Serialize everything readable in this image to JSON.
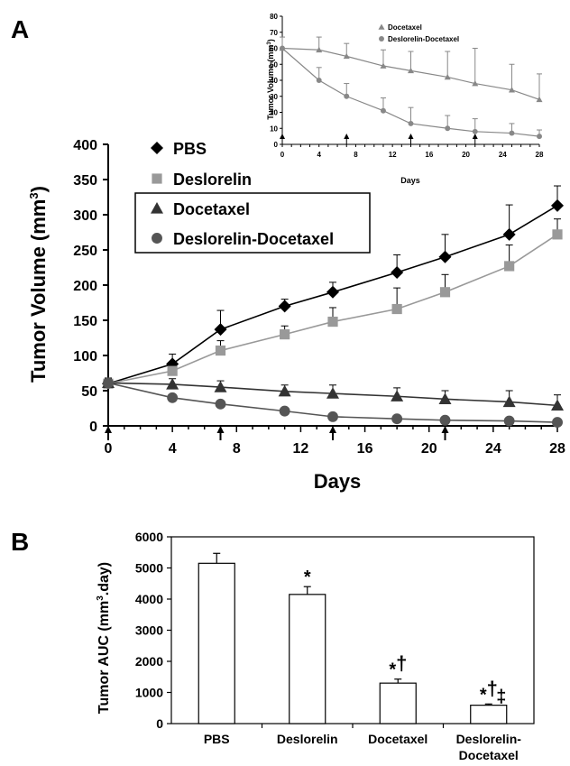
{
  "chart_data": [
    {
      "type": "line",
      "panel": "A",
      "xlabel": "Days",
      "ylabel": "Tumor Volume (mm³)",
      "ylabel_main": "Tumor Volume (mm",
      "ylabel_sup": "3",
      "ylabel_close": ")",
      "xlim": [
        0,
        28
      ],
      "ylim": [
        0,
        400
      ],
      "xticks": [
        0,
        4,
        8,
        12,
        16,
        20,
        24,
        28
      ],
      "yticks": [
        0,
        50,
        100,
        150,
        200,
        250,
        300,
        350,
        400
      ],
      "dosing_days": [
        0,
        7,
        14,
        21
      ],
      "legend": [
        "PBS",
        "Deslorelin",
        "Docetaxel",
        "Deslorelin-Docetaxel"
      ],
      "series": [
        {
          "name": "PBS",
          "marker": "diamond",
          "color": "#000000",
          "x": [
            0,
            4,
            7,
            11,
            14,
            18,
            21,
            25,
            28
          ],
          "y": [
            60,
            88,
            137,
            170,
            190,
            218,
            240,
            272,
            313
          ],
          "err": [
            7,
            14,
            27,
            10,
            14,
            25,
            32,
            42,
            28
          ]
        },
        {
          "name": "Deslorelin",
          "marker": "square",
          "color": "#999999",
          "x": [
            0,
            4,
            7,
            11,
            14,
            18,
            21,
            25,
            28
          ],
          "y": [
            60,
            78,
            107,
            130,
            148,
            166,
            190,
            227,
            272
          ],
          "err": [
            6,
            8,
            14,
            12,
            20,
            30,
            25,
            30,
            22
          ]
        },
        {
          "name": "Docetaxel",
          "marker": "triangle",
          "color": "#333333",
          "x": [
            0,
            4,
            7,
            11,
            14,
            18,
            21,
            25,
            28
          ],
          "y": [
            61,
            59,
            55,
            49,
            46,
            42,
            38,
            34,
            29
          ],
          "err": [
            7,
            8,
            9,
            9,
            12,
            12,
            12,
            16,
            15
          ]
        },
        {
          "name": "Deslorelin-Docetaxel",
          "marker": "circle",
          "color": "#555555",
          "x": [
            0,
            4,
            7,
            11,
            14,
            18,
            21,
            25,
            28
          ],
          "y": [
            61,
            40,
            31,
            21,
            13,
            10,
            8,
            7,
            5
          ]
        }
      ]
    },
    {
      "type": "line",
      "panel": "A-inset",
      "xlabel": "Days",
      "ylabel": "Tumor Volume (mm³)",
      "ylabel_main": "Tumor Volume (mm",
      "ylabel_sup": "3",
      "ylabel_close": ")",
      "xlim": [
        0,
        28
      ],
      "ylim": [
        0,
        80
      ],
      "xticks": [
        0,
        4,
        8,
        12,
        16,
        20,
        24,
        28
      ],
      "yticks": [
        0,
        10,
        20,
        30,
        40,
        50,
        60,
        70,
        80
      ],
      "dosing_days": [
        0,
        7,
        14,
        21
      ],
      "legend": [
        "Docetaxel",
        "Deslorelin-Docetaxel"
      ],
      "series": [
        {
          "name": "Docetaxel",
          "marker": "triangle",
          "color": "#888888",
          "x": [
            0,
            4,
            7,
            11,
            14,
            18,
            21,
            25,
            28
          ],
          "y": [
            60,
            59,
            55,
            49,
            46,
            42,
            38,
            34,
            28
          ],
          "err": [
            7,
            8,
            8,
            10,
            12,
            16,
            22,
            16,
            16
          ]
        },
        {
          "name": "Deslorelin-Docetaxel",
          "marker": "circle",
          "color": "#888888",
          "x": [
            0,
            4,
            7,
            11,
            14,
            18,
            21,
            25,
            28
          ],
          "y": [
            60,
            40,
            30,
            21,
            13,
            10,
            8,
            7,
            5
          ],
          "err": [
            0,
            8,
            8,
            8,
            10,
            8,
            8,
            6,
            4
          ]
        }
      ]
    },
    {
      "type": "bar",
      "panel": "B",
      "ylabel": "Tumor AUC (mm³.day)",
      "ylabel_main": "Tumor AUC (mm",
      "ylabel_sup": "3",
      "ylabel_close": ".day)",
      "ylim": [
        0,
        6000
      ],
      "yticks": [
        0,
        1000,
        2000,
        3000,
        4000,
        5000,
        6000
      ],
      "categories": [
        "PBS",
        "Deslorelin",
        "Docetaxel",
        "Deslorelin-Docetaxel"
      ],
      "category_lines": [
        [
          "PBS"
        ],
        [
          "Deslorelin"
        ],
        [
          "Docetaxel"
        ],
        [
          "Deslorelin-",
          "Docetaxel"
        ]
      ],
      "values": [
        5150,
        4150,
        1300,
        590
      ],
      "err": [
        320,
        250,
        130,
        40
      ],
      "annotations": [
        {
          "category": "PBS",
          "text": []
        },
        {
          "category": "Deslorelin",
          "text": [
            "*"
          ]
        },
        {
          "category": "Docetaxel",
          "text": [
            "*",
            "†"
          ]
        },
        {
          "category": "Deslorelin-Docetaxel",
          "text": [
            "*",
            "†",
            "‡"
          ]
        }
      ]
    }
  ],
  "panels": {
    "a_label": "A",
    "b_label": "B"
  }
}
